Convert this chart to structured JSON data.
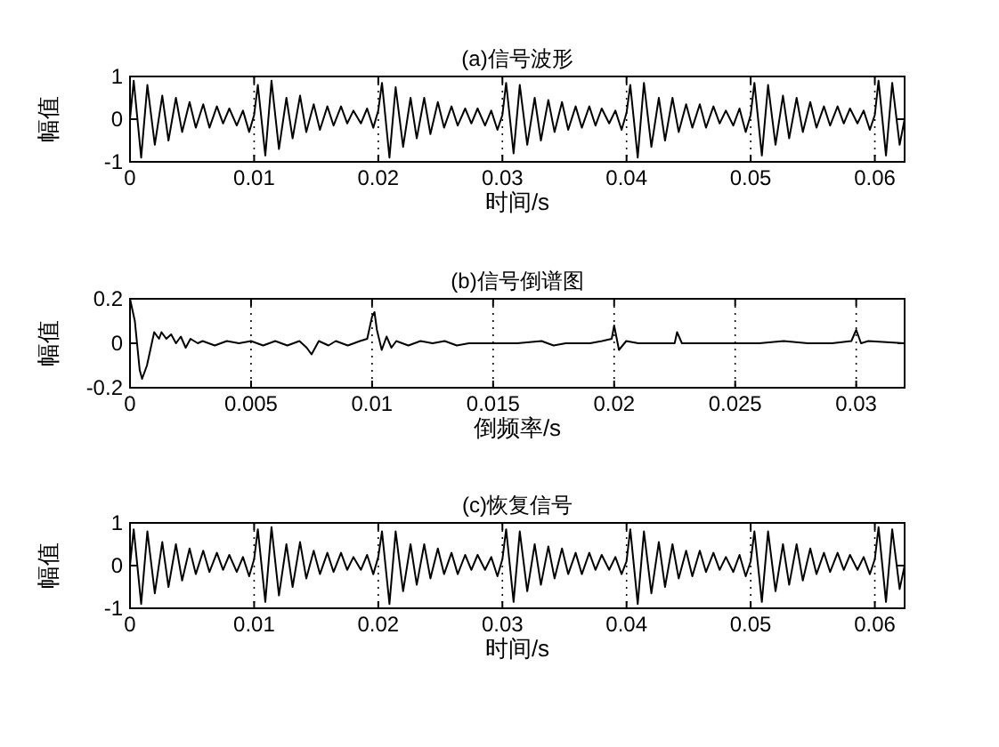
{
  "chart_data": [
    {
      "type": "line",
      "title": "(a)信号波形",
      "xlabel": "时间/s",
      "ylabel": "幅值",
      "xlim": [
        0,
        0.0624
      ],
      "ylim": [
        -1,
        1
      ],
      "xticks": [
        0,
        0.01,
        0.02,
        0.03,
        0.04,
        0.05,
        0.06
      ],
      "yticks": [
        -1,
        0,
        1
      ],
      "grid": "x",
      "marker": "none",
      "line_style": "solid",
      "series": [
        {
          "color": "#000000",
          "x": [
            0,
            0.0003,
            0.0009,
            0.0014,
            0.002,
            0.0026,
            0.0031,
            0.0037,
            0.0042,
            0.0048,
            0.0053,
            0.0059,
            0.0064,
            0.007,
            0.0075,
            0.008,
            0.0086,
            0.0091,
            0.0096,
            0.01,
            0.0103,
            0.0109,
            0.0114,
            0.012,
            0.0126,
            0.0131,
            0.0137,
            0.0142,
            0.0148,
            0.0153,
            0.0159,
            0.0164,
            0.017,
            0.0175,
            0.018,
            0.0186,
            0.0191,
            0.0196,
            0.02,
            0.0203,
            0.0209,
            0.0214,
            0.022,
            0.0226,
            0.0231,
            0.0237,
            0.0242,
            0.0248,
            0.0253,
            0.0259,
            0.0264,
            0.027,
            0.0275,
            0.028,
            0.0286,
            0.0291,
            0.0296,
            0.03,
            0.0303,
            0.0309,
            0.0314,
            0.032,
            0.0326,
            0.0331,
            0.0337,
            0.0342,
            0.0348,
            0.0353,
            0.0359,
            0.0364,
            0.037,
            0.0375,
            0.038,
            0.0386,
            0.0391,
            0.0396,
            0.04,
            0.0403,
            0.0409,
            0.0414,
            0.042,
            0.0426,
            0.0431,
            0.0437,
            0.0442,
            0.0448,
            0.0453,
            0.0459,
            0.0464,
            0.047,
            0.0475,
            0.048,
            0.0486,
            0.0491,
            0.0496,
            0.05,
            0.0503,
            0.0509,
            0.0514,
            0.052,
            0.0526,
            0.0531,
            0.0537,
            0.0542,
            0.0548,
            0.0553,
            0.0559,
            0.0564,
            0.057,
            0.0575,
            0.058,
            0.0586,
            0.0591,
            0.0596,
            0.06,
            0.0603,
            0.0609,
            0.0614,
            0.062,
            0.0624
          ],
          "values": [
            0,
            0.9,
            -0.9,
            0.8,
            -0.6,
            0.55,
            -0.5,
            0.5,
            -0.3,
            0.4,
            -0.2,
            0.35,
            -0.2,
            0.3,
            -0.1,
            0.25,
            -0.15,
            0.2,
            -0.3,
            0.1,
            0.8,
            -0.85,
            0.9,
            -0.7,
            0.5,
            -0.45,
            0.55,
            -0.3,
            0.35,
            -0.25,
            0.3,
            -0.15,
            0.3,
            -0.1,
            0.2,
            -0.1,
            0.25,
            -0.2,
            0.2,
            0.85,
            -0.9,
            0.75,
            -0.65,
            0.5,
            -0.45,
            0.5,
            -0.35,
            0.4,
            -0.2,
            0.3,
            -0.15,
            0.25,
            -0.1,
            0.25,
            -0.15,
            0.2,
            -0.25,
            0.1,
            0.85,
            -0.8,
            0.8,
            -0.6,
            0.5,
            -0.5,
            0.45,
            -0.3,
            0.4,
            -0.25,
            0.3,
            -0.2,
            0.3,
            -0.15,
            0.25,
            -0.1,
            0.2,
            -0.25,
            0.15,
            0.8,
            -0.9,
            0.85,
            -0.65,
            0.5,
            -0.5,
            0.5,
            -0.3,
            0.35,
            -0.2,
            0.35,
            -0.2,
            0.3,
            -0.1,
            0.2,
            -0.15,
            0.25,
            -0.3,
            0.1,
            0.85,
            -0.85,
            0.8,
            -0.6,
            0.55,
            -0.45,
            0.5,
            -0.3,
            0.4,
            -0.2,
            0.3,
            -0.15,
            0.3,
            -0.1,
            0.25,
            -0.1,
            0.2,
            -0.25,
            0.1,
            0.9,
            -0.85,
            0.85,
            -0.6,
            0
          ]
        }
      ]
    },
    {
      "type": "line",
      "title": "(b)信号倒谱图",
      "xlabel": "倒频率/s",
      "ylabel": "幅值",
      "xlim": [
        0,
        0.032
      ],
      "ylim": [
        -0.2,
        0.2
      ],
      "xticks": [
        0,
        0.005,
        0.01,
        0.015,
        0.02,
        0.025,
        0.03
      ],
      "yticks": [
        -0.2,
        0,
        0.2
      ],
      "grid": "x",
      "marker": "none",
      "line_style": "solid",
      "series": [
        {
          "color": "#000000",
          "x": [
            0,
            0.0002,
            0.0004,
            0.0005,
            0.0007,
            0.0009,
            0.001,
            0.0012,
            0.0013,
            0.0015,
            0.0017,
            0.0019,
            0.0021,
            0.0023,
            0.0025,
            0.0028,
            0.003,
            0.0035,
            0.004,
            0.0045,
            0.005,
            0.0055,
            0.006,
            0.0065,
            0.007,
            0.0073,
            0.0075,
            0.0078,
            0.0082,
            0.0085,
            0.009,
            0.0095,
            0.0098,
            0.01,
            0.0101,
            0.0102,
            0.0104,
            0.0106,
            0.0108,
            0.011,
            0.0115,
            0.012,
            0.0125,
            0.013,
            0.0135,
            0.014,
            0.015,
            0.016,
            0.017,
            0.0175,
            0.018,
            0.019,
            0.0195,
            0.0199,
            0.02,
            0.0202,
            0.0205,
            0.021,
            0.0225,
            0.0226,
            0.0228,
            0.024,
            0.025,
            0.026,
            0.027,
            0.028,
            0.029,
            0.0298,
            0.03,
            0.0302,
            0.0305,
            0.032
          ],
          "values": [
            0.2,
            0.1,
            -0.12,
            -0.16,
            -0.1,
            0,
            0.05,
            0.02,
            0.05,
            0.02,
            0.04,
            0,
            0.03,
            -0.02,
            0.02,
            0,
            0.01,
            -0.01,
            0.01,
            0,
            0.01,
            -0.01,
            0.01,
            -0.01,
            0.01,
            -0.02,
            -0.05,
            0.01,
            -0.01,
            0.01,
            -0.01,
            0.01,
            0.02,
            0.12,
            0.14,
            0.06,
            -0.03,
            0.03,
            -0.02,
            0.01,
            -0.01,
            0.01,
            0,
            0.01,
            -0.01,
            0,
            0,
            0,
            0.01,
            -0.01,
            0,
            0,
            0.01,
            0.02,
            0.08,
            -0.03,
            0.01,
            0,
            0,
            0.05,
            0,
            0,
            0,
            0,
            0.01,
            0,
            0,
            0.01,
            0.06,
            0,
            0.01,
            0
          ]
        }
      ]
    },
    {
      "type": "line",
      "title": "(c)恢复信号",
      "xlabel": "时间/s",
      "ylabel": "幅值",
      "xlim": [
        0,
        0.0624
      ],
      "ylim": [
        -1,
        1
      ],
      "xticks": [
        0,
        0.01,
        0.02,
        0.03,
        0.04,
        0.05,
        0.06
      ],
      "yticks": [
        -1,
        0,
        1
      ],
      "grid": "x",
      "marker": "none",
      "line_style": "solid",
      "series": [
        {
          "color": "#000000",
          "x": [
            0,
            0.0003,
            0.0009,
            0.0014,
            0.002,
            0.0026,
            0.0031,
            0.0037,
            0.0042,
            0.0048,
            0.0053,
            0.0059,
            0.0064,
            0.007,
            0.0075,
            0.008,
            0.0086,
            0.0091,
            0.0096,
            0.01,
            0.0103,
            0.0109,
            0.0114,
            0.012,
            0.0126,
            0.0131,
            0.0137,
            0.0142,
            0.0148,
            0.0153,
            0.0159,
            0.0164,
            0.017,
            0.0175,
            0.018,
            0.0186,
            0.0191,
            0.0196,
            0.02,
            0.0203,
            0.0209,
            0.0214,
            0.022,
            0.0226,
            0.0231,
            0.0237,
            0.0242,
            0.0248,
            0.0253,
            0.0259,
            0.0264,
            0.027,
            0.0275,
            0.028,
            0.0286,
            0.0291,
            0.0296,
            0.03,
            0.0303,
            0.0309,
            0.0314,
            0.032,
            0.0326,
            0.0331,
            0.0337,
            0.0342,
            0.0348,
            0.0353,
            0.0359,
            0.0364,
            0.037,
            0.0375,
            0.038,
            0.0386,
            0.0391,
            0.0396,
            0.04,
            0.0403,
            0.0409,
            0.0414,
            0.042,
            0.0426,
            0.0431,
            0.0437,
            0.0442,
            0.0448,
            0.0453,
            0.0459,
            0.0464,
            0.047,
            0.0475,
            0.048,
            0.0486,
            0.0491,
            0.0496,
            0.05,
            0.0503,
            0.0509,
            0.0514,
            0.052,
            0.0526,
            0.0531,
            0.0537,
            0.0542,
            0.0548,
            0.0553,
            0.0559,
            0.0564,
            0.057,
            0.0575,
            0.058,
            0.0586,
            0.0591,
            0.0596,
            0.06,
            0.0603,
            0.0609,
            0.0614,
            0.062,
            0.0624
          ],
          "values": [
            0,
            0.85,
            -0.9,
            0.8,
            -0.65,
            0.55,
            -0.5,
            0.5,
            -0.35,
            0.4,
            -0.2,
            0.35,
            -0.15,
            0.3,
            -0.1,
            0.25,
            -0.15,
            0.2,
            -0.25,
            0.15,
            0.85,
            -0.85,
            0.9,
            -0.7,
            0.5,
            -0.5,
            0.55,
            -0.3,
            0.35,
            -0.2,
            0.3,
            -0.15,
            0.3,
            -0.1,
            0.2,
            -0.1,
            0.25,
            -0.2,
            0.2,
            0.8,
            -0.9,
            0.8,
            -0.6,
            0.5,
            -0.45,
            0.5,
            -0.3,
            0.4,
            -0.2,
            0.3,
            -0.2,
            0.25,
            -0.1,
            0.25,
            -0.1,
            0.2,
            -0.25,
            0.15,
            0.85,
            -0.85,
            0.8,
            -0.6,
            0.5,
            -0.45,
            0.45,
            -0.3,
            0.4,
            -0.2,
            0.3,
            -0.2,
            0.3,
            -0.1,
            0.25,
            -0.1,
            0.2,
            -0.2,
            0.1,
            0.85,
            -0.9,
            0.8,
            -0.65,
            0.55,
            -0.5,
            0.5,
            -0.3,
            0.35,
            -0.25,
            0.35,
            -0.15,
            0.3,
            -0.1,
            0.2,
            -0.15,
            0.25,
            -0.25,
            0.1,
            0.8,
            -0.85,
            0.8,
            -0.6,
            0.5,
            -0.45,
            0.5,
            -0.35,
            0.4,
            -0.2,
            0.3,
            -0.15,
            0.3,
            -0.1,
            0.25,
            -0.1,
            0.2,
            -0.2,
            0.15,
            0.9,
            -0.85,
            0.85,
            -0.55,
            0
          ]
        }
      ]
    }
  ]
}
